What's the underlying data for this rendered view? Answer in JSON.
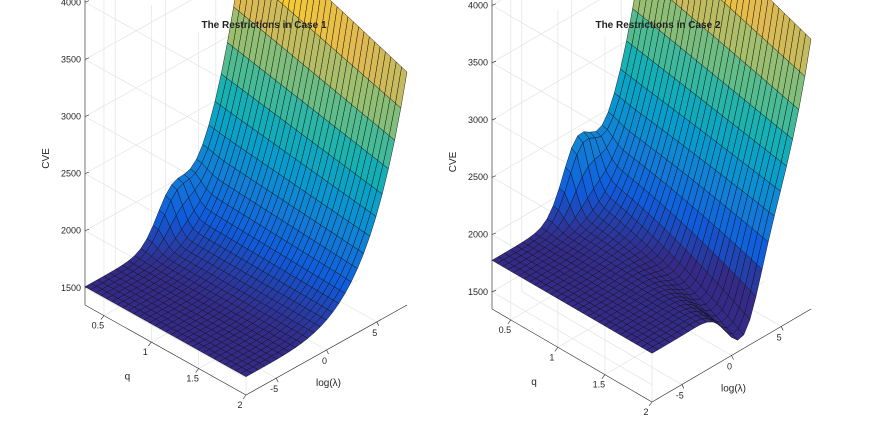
{
  "chart_data": [
    {
      "type": "surface",
      "title": "The Restrictions in Case 1",
      "xlabel": "log(λ)",
      "ylabel": "q",
      "zlabel": "CVE",
      "x_ticks": [
        "-5",
        "0",
        "5"
      ],
      "y_ticks": [
        "0.5",
        "1",
        "1.5",
        "2"
      ],
      "z_ticks": [
        "1500",
        "2000",
        "2500",
        "3000",
        "3500",
        "4000"
      ],
      "xlim": [
        -8,
        8
      ],
      "ylim": [
        0.3,
        2.0
      ],
      "zlim": [
        1350,
        4300
      ],
      "surface": {
        "base": 1510,
        "peak": 3920,
        "dip": 0,
        "ridge": 300
      }
    },
    {
      "type": "surface",
      "title": "The Restrictions in Case 2",
      "xlabel": "log(λ)",
      "ylabel": "q",
      "zlabel": "CVE",
      "x_ticks": [
        "-5",
        "0",
        "5"
      ],
      "y_ticks": [
        "0.5",
        "1",
        "1.5",
        "2"
      ],
      "z_ticks": [
        "1500",
        "2000",
        "2500",
        "3000",
        "3500",
        "4000"
      ],
      "xlim": [
        -8,
        8
      ],
      "ylim": [
        0.3,
        2.0
      ],
      "zlim": [
        1350,
        4300
      ],
      "surface": {
        "base": 1775,
        "peak": 4250,
        "dip": 500,
        "ridge": 480
      }
    }
  ]
}
